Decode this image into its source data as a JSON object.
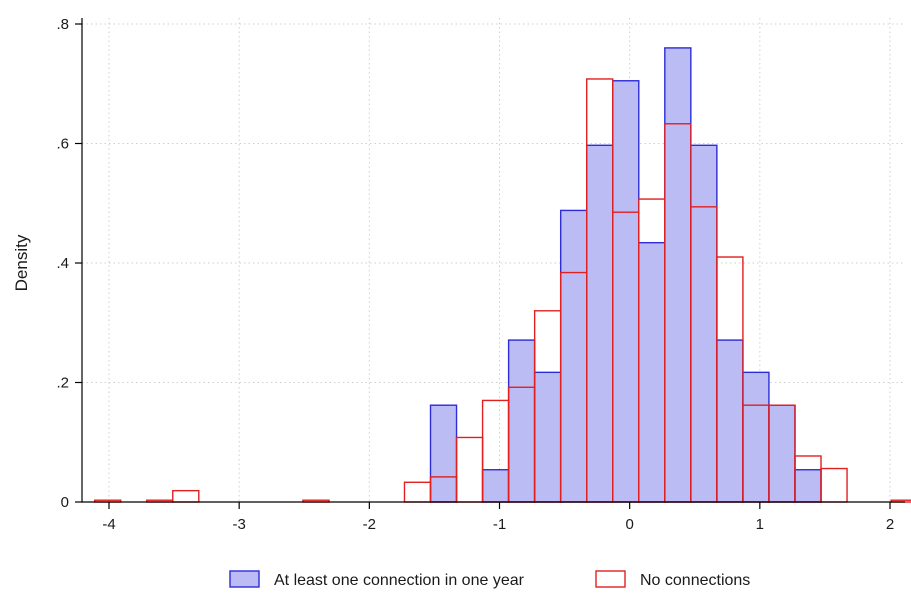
{
  "chart_data": {
    "type": "bar",
    "xlabel": "",
    "ylabel": "Density",
    "xlim": [
      -4.1,
      2.1
    ],
    "ylim": [
      0,
      0.8
    ],
    "xticks": [
      {
        "value": -4,
        "label": "-4"
      },
      {
        "value": -3,
        "label": "-3"
      },
      {
        "value": -2,
        "label": "-2"
      },
      {
        "value": -1,
        "label": "-1"
      },
      {
        "value": 0,
        "label": "0"
      },
      {
        "value": 1,
        "label": "1"
      },
      {
        "value": 2,
        "label": "2"
      }
    ],
    "yticks": [
      {
        "value": 0,
        "label": "0"
      },
      {
        "value": 0.2,
        "label": ".2"
      },
      {
        "value": 0.4,
        "label": ".4"
      },
      {
        "value": 0.6,
        "label": ".6"
      },
      {
        "value": 0.8,
        "label": ".8"
      }
    ],
    "grid": true,
    "legend_position": "bottom",
    "series": [
      {
        "name": "At least one connection in one year",
        "style": "filled",
        "fill_color": "#bcbcf5",
        "edge_color": "#2c2cd8",
        "bins": [
          {
            "x0": -1.53,
            "x1": -1.33,
            "y": 0.162
          },
          {
            "x0": -1.13,
            "x1": -0.93,
            "y": 0.054
          },
          {
            "x0": -0.93,
            "x1": -0.73,
            "y": 0.271
          },
          {
            "x0": -0.73,
            "x1": -0.53,
            "y": 0.217
          },
          {
            "x0": -0.53,
            "x1": -0.33,
            "y": 0.488
          },
          {
            "x0": -0.33,
            "x1": -0.13,
            "y": 0.597
          },
          {
            "x0": -0.13,
            "x1": 0.07,
            "y": 0.705
          },
          {
            "x0": 0.07,
            "x1": 0.27,
            "y": 0.434
          },
          {
            "x0": 0.27,
            "x1": 0.47,
            "y": 0.76
          },
          {
            "x0": 0.47,
            "x1": 0.67,
            "y": 0.597
          },
          {
            "x0": 0.67,
            "x1": 0.87,
            "y": 0.271
          },
          {
            "x0": 0.87,
            "x1": 1.07,
            "y": 0.217
          },
          {
            "x0": 1.07,
            "x1": 1.27,
            "y": 0.162
          },
          {
            "x0": 1.27,
            "x1": 1.47,
            "y": 0.054
          }
        ]
      },
      {
        "name": "No connections",
        "style": "outline",
        "fill_color": "none",
        "edge_color": "#e02020",
        "bins": [
          {
            "x0": -4.11,
            "x1": -3.91,
            "y": 0.003
          },
          {
            "x0": -3.71,
            "x1": -3.51,
            "y": 0.003
          },
          {
            "x0": -3.51,
            "x1": -3.31,
            "y": 0.019
          },
          {
            "x0": -2.51,
            "x1": -2.31,
            "y": 0.003
          },
          {
            "x0": -1.73,
            "x1": -1.53,
            "y": 0.033
          },
          {
            "x0": -1.53,
            "x1": -1.33,
            "y": 0.042
          },
          {
            "x0": -1.33,
            "x1": -1.13,
            "y": 0.108
          },
          {
            "x0": -1.13,
            "x1": -0.93,
            "y": 0.17
          },
          {
            "x0": -0.93,
            "x1": -0.73,
            "y": 0.192
          },
          {
            "x0": -0.73,
            "x1": -0.53,
            "y": 0.32
          },
          {
            "x0": -0.53,
            "x1": -0.33,
            "y": 0.384
          },
          {
            "x0": -0.33,
            "x1": -0.13,
            "y": 0.708
          },
          {
            "x0": -0.13,
            "x1": 0.07,
            "y": 0.485
          },
          {
            "x0": 0.07,
            "x1": 0.27,
            "y": 0.507
          },
          {
            "x0": 0.27,
            "x1": 0.47,
            "y": 0.633
          },
          {
            "x0": 0.47,
            "x1": 0.67,
            "y": 0.494
          },
          {
            "x0": 0.67,
            "x1": 0.87,
            "y": 0.41
          },
          {
            "x0": 0.87,
            "x1": 1.07,
            "y": 0.162
          },
          {
            "x0": 1.07,
            "x1": 1.27,
            "y": 0.162
          },
          {
            "x0": 1.27,
            "x1": 1.47,
            "y": 0.077
          },
          {
            "x0": 1.47,
            "x1": 1.67,
            "y": 0.056
          },
          {
            "x0": 2.01,
            "x1": 2.21,
            "y": 0.003
          }
        ]
      }
    ]
  }
}
